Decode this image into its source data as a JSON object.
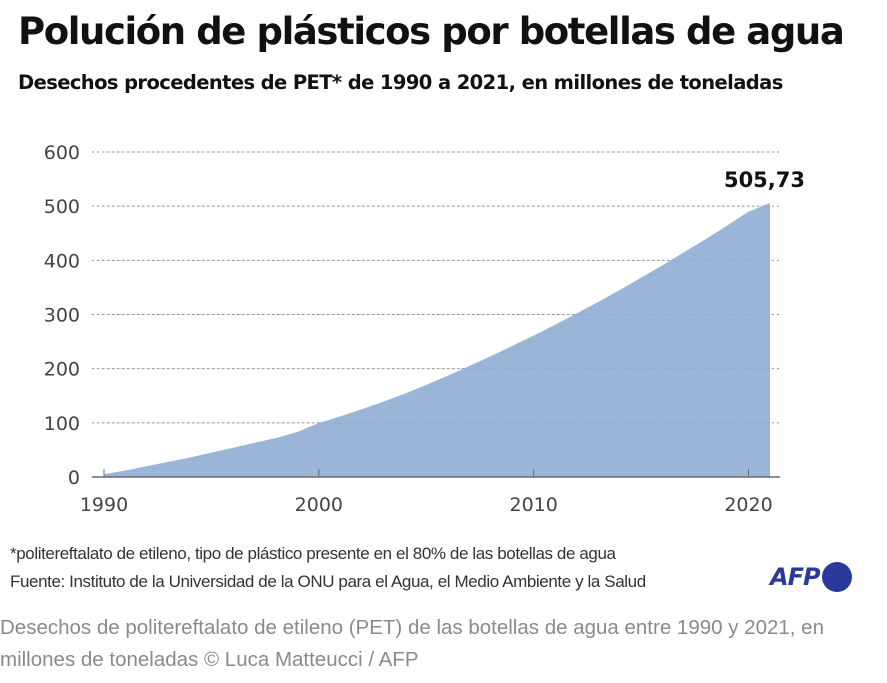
{
  "header": {
    "title": "Polución de plásticos por botellas de agua",
    "subtitle": "Desechos procedentes de PET* de 1990 a 2021, en millones de toneladas"
  },
  "chart_data": {
    "type": "area",
    "title": "Polución de plásticos por botellas de agua",
    "subtitle": "Desechos procedentes de PET* de 1990 a 2021, en millones de toneladas",
    "xlabel": "",
    "ylabel": "",
    "x": [
      1990,
      1991,
      1992,
      1993,
      1994,
      1995,
      1996,
      1997,
      1998,
      1999,
      2000,
      2001,
      2002,
      2003,
      2004,
      2005,
      2006,
      2007,
      2008,
      2009,
      2010,
      2011,
      2012,
      2013,
      2014,
      2015,
      2016,
      2017,
      2018,
      2019,
      2020,
      2021
    ],
    "series": [
      {
        "name": "Desechos de PET (millones de toneladas)",
        "color": "#9bb5d9",
        "values": [
          5,
          12,
          20,
          28,
          36,
          45,
          54,
          63,
          72,
          83,
          100,
          112,
          125,
          139,
          154,
          170,
          187,
          205,
          223,
          242,
          261,
          281,
          302,
          323,
          345,
          368,
          391,
          415,
          439,
          464,
          490,
          505.73
        ]
      }
    ],
    "xlim": [
      1990,
      2021
    ],
    "ylim": [
      0,
      600
    ],
    "xticks": [
      1990,
      2000,
      2010,
      2020
    ],
    "xtick_labels": [
      "1990",
      "2000",
      "2010",
      "2020"
    ],
    "yticks": [
      0,
      100,
      200,
      300,
      400,
      500,
      600
    ],
    "ytick_labels": [
      "0",
      "100",
      "200",
      "300",
      "400",
      "500",
      "600"
    ],
    "grid": "horizontal-dotted",
    "annotations": [
      {
        "x": 2021,
        "y": 505.73,
        "text": "505,73"
      }
    ]
  },
  "footer": {
    "note": "*politereftalato de etileno, tipo de plástico presente en el 80% de las botellas de agua",
    "source": "Fuente: Instituto de la Universidad de la ONU para el Agua, el Medio Ambiente y la Salud",
    "logo_text": "AFP",
    "logo_color": "#2a3a9c"
  },
  "caption": "Desechos de politereftalato de etileno (PET) de las botellas de agua entre 1990 y 2021, en millones de toneladas © Luca Matteucci / AFP"
}
